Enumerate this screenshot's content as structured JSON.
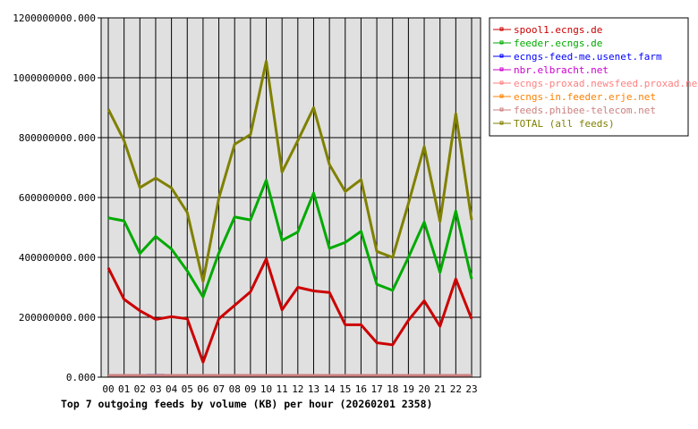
{
  "chart_data": {
    "type": "line",
    "title": "Top 7 outgoing feeds by volume (KB) per hour (20260201 2358)",
    "xlabel": "",
    "ylabel": "",
    "categories": [
      "00",
      "01",
      "02",
      "03",
      "04",
      "05",
      "06",
      "07",
      "08",
      "09",
      "10",
      "11",
      "12",
      "13",
      "14",
      "15",
      "16",
      "17",
      "18",
      "19",
      "20",
      "21",
      "22",
      "23"
    ],
    "ylim": [
      0,
      1200000000
    ],
    "yticks": [
      "0.000",
      "200000000.000",
      "400000000.000",
      "600000000.000",
      "800000000.000",
      "1000000000.000",
      "1200000000.000"
    ],
    "grid": true,
    "legend_position": "right",
    "series": [
      {
        "name": "spool1.ecngs.de",
        "color": "#cc0000",
        "values": [
          365000000,
          260000000,
          222000000,
          193000000,
          202000000,
          195000000,
          50000000,
          195000000,
          240000000,
          285000000,
          395000000,
          225000000,
          300000000,
          288000000,
          283000000,
          175000000,
          175000000,
          115000000,
          108000000,
          190000000,
          255000000,
          170000000,
          328000000,
          195000000
        ]
      },
      {
        "name": "feeder.ecngs.de",
        "color": "#00aa00",
        "values": [
          532000000,
          522000000,
          413000000,
          470000000,
          428000000,
          355000000,
          268000000,
          415000000,
          535000000,
          525000000,
          658000000,
          457000000,
          485000000,
          615000000,
          430000000,
          450000000,
          487000000,
          310000000,
          290000000,
          400000000,
          518000000,
          350000000,
          555000000,
          328000000
        ]
      },
      {
        "name": "ecngs-feed-me.usenet.farm",
        "color": "#0000ff",
        "values": [
          null,
          null,
          null,
          8000000,
          null,
          null,
          null,
          null,
          null,
          null,
          null,
          null,
          null,
          null,
          null,
          null,
          null,
          null,
          null,
          null,
          null,
          null,
          null,
          null
        ]
      },
      {
        "name": "nbr.elbracht.net",
        "color": "#cc00cc",
        "values": [
          0,
          0,
          0,
          0,
          0,
          0,
          0,
          0,
          0,
          0,
          0,
          0,
          0,
          0,
          0,
          0,
          0,
          0,
          0,
          0,
          0,
          0,
          0,
          0
        ]
      },
      {
        "name": "ecngs-proxad.newsfeed.proxad.net",
        "color": "#ff8080",
        "values": [
          0,
          0,
          0,
          0,
          0,
          0,
          0,
          0,
          0,
          0,
          0,
          0,
          0,
          0,
          0,
          0,
          0,
          0,
          0,
          0,
          0,
          0,
          0,
          0
        ]
      },
      {
        "name": "ecngs-in.feeder.erje.net",
        "color": "#ff8000",
        "values": [
          0,
          0,
          0,
          0,
          0,
          0,
          0,
          0,
          0,
          0,
          0,
          0,
          0,
          0,
          0,
          0,
          0,
          0,
          0,
          0,
          0,
          0,
          0,
          0
        ]
      },
      {
        "name": "feeds.phibee-telecom.net",
        "color": "#cc8080",
        "values": [
          0,
          0,
          0,
          0,
          0,
          0,
          0,
          0,
          0,
          0,
          0,
          0,
          0,
          0,
          0,
          0,
          0,
          0,
          0,
          0,
          0,
          0,
          0,
          0
        ]
      },
      {
        "name": "TOTAL (all feeds)",
        "color": "#808000",
        "values": [
          895000000,
          790000000,
          633000000,
          665000000,
          632000000,
          550000000,
          320000000,
          598000000,
          778000000,
          810000000,
          1055000000,
          685000000,
          790000000,
          900000000,
          710000000,
          620000000,
          660000000,
          420000000,
          400000000,
          580000000,
          770000000,
          520000000,
          880000000,
          525000000
        ]
      }
    ]
  }
}
